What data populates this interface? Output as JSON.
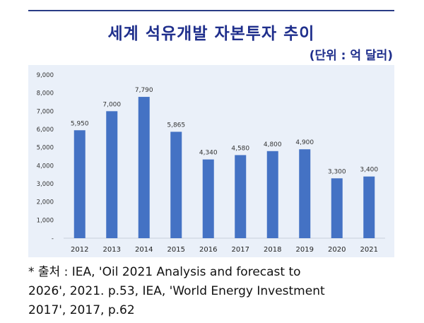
{
  "header": {
    "title": "세계 석유개발 자본투자 추이",
    "unit": "(단위 : 억 달러)"
  },
  "source_note": {
    "line1": "* 출처 : IEA, 'Oil 2021 Analysis and forecast to",
    "line2": "2026', 2021. p.53, IEA, 'World Energy Investment",
    "line3": "2017', 2017, p.62"
  },
  "colors": {
    "bar": "#4472c4",
    "title": "#1f2f8c",
    "background": "#eaf0f9",
    "grid": "#d6dce6"
  },
  "chart_data": {
    "type": "bar",
    "title": "세계 석유개발 자본투자 추이",
    "ylabel": "",
    "xlabel": "",
    "categories": [
      "2012",
      "2013",
      "2014",
      "2015",
      "2016",
      "2017",
      "2018",
      "2019",
      "2020",
      "2021"
    ],
    "values": [
      5950,
      7000,
      7790,
      5865,
      4340,
      4580,
      4800,
      4900,
      3300,
      3400
    ],
    "value_labels": [
      "5,950",
      "7,000",
      "7,790",
      "5,865",
      "4,340",
      "4,580",
      "4,800",
      "4,900",
      "3,300",
      "3,400"
    ],
    "ylim": [
      0,
      9000
    ],
    "yticks": [
      0,
      1000,
      2000,
      3000,
      4000,
      5000,
      6000,
      7000,
      8000,
      9000
    ],
    "ytick_labels": [
      "-",
      "1,000",
      "2,000",
      "3,000",
      "4,000",
      "5,000",
      "6,000",
      "7,000",
      "8,000",
      "9,000"
    ],
    "grid": false
  }
}
